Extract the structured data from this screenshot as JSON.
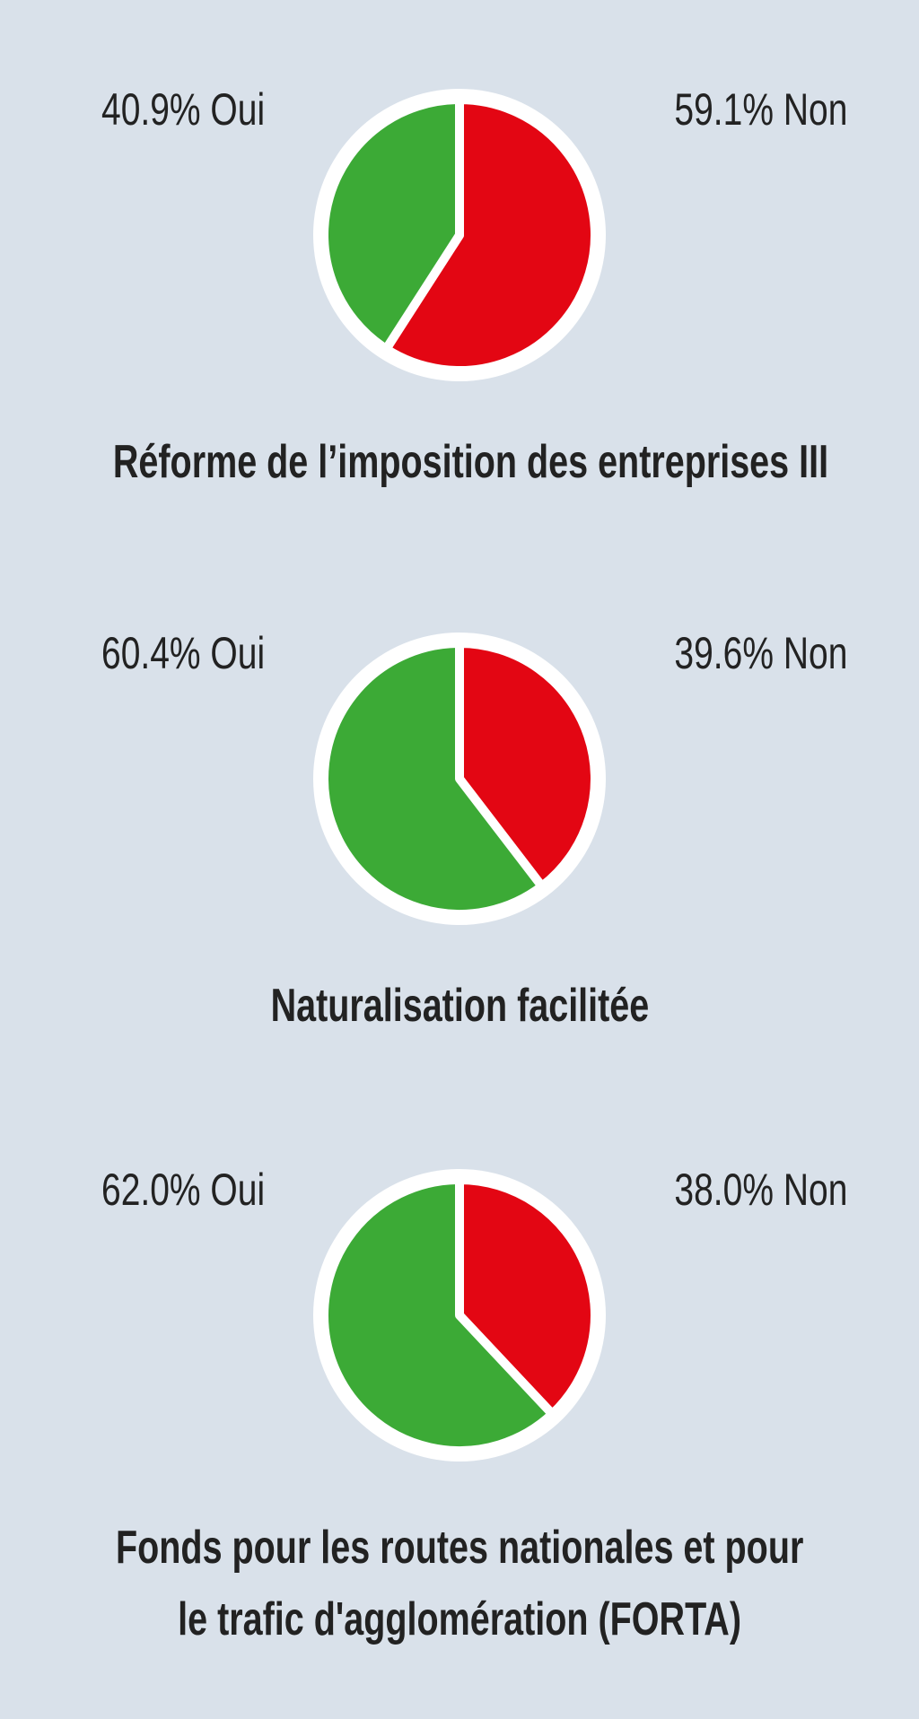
{
  "colors": {
    "background": "#d9e1ea",
    "yes": "#3caa36",
    "no": "#e30613",
    "border": "#ffffff",
    "text": "#222222"
  },
  "charts": [
    {
      "yes_label": "40.9% Oui",
      "no_label": "59.1% Non",
      "title_lines": [
        "Réforme de l’imposition des entreprises III"
      ]
    },
    {
      "yes_label": "60.4% Oui",
      "no_label": "39.6% Non",
      "title_lines": [
        "Naturalisation facilitée"
      ]
    },
    {
      "yes_label": "62.0% Oui",
      "no_label": "38.0% Non",
      "title_lines": [
        "Fonds pour les routes nationales et pour",
        "le trafic d'agglomération (FORTA)"
      ]
    }
  ],
  "chart_data": [
    {
      "type": "pie",
      "categories": [
        "Oui",
        "Non"
      ],
      "values": [
        40.9,
        59.1
      ],
      "title": "Réforme de l’imposition des entreprises III"
    },
    {
      "type": "pie",
      "categories": [
        "Oui",
        "Non"
      ],
      "values": [
        60.4,
        39.6
      ],
      "title": "Naturalisation facilitée"
    },
    {
      "type": "pie",
      "categories": [
        "Oui",
        "Non"
      ],
      "values": [
        62.0,
        38.0
      ],
      "title": "Fonds pour les routes nationales et pour le trafic d'agglomération (FORTA)"
    }
  ]
}
